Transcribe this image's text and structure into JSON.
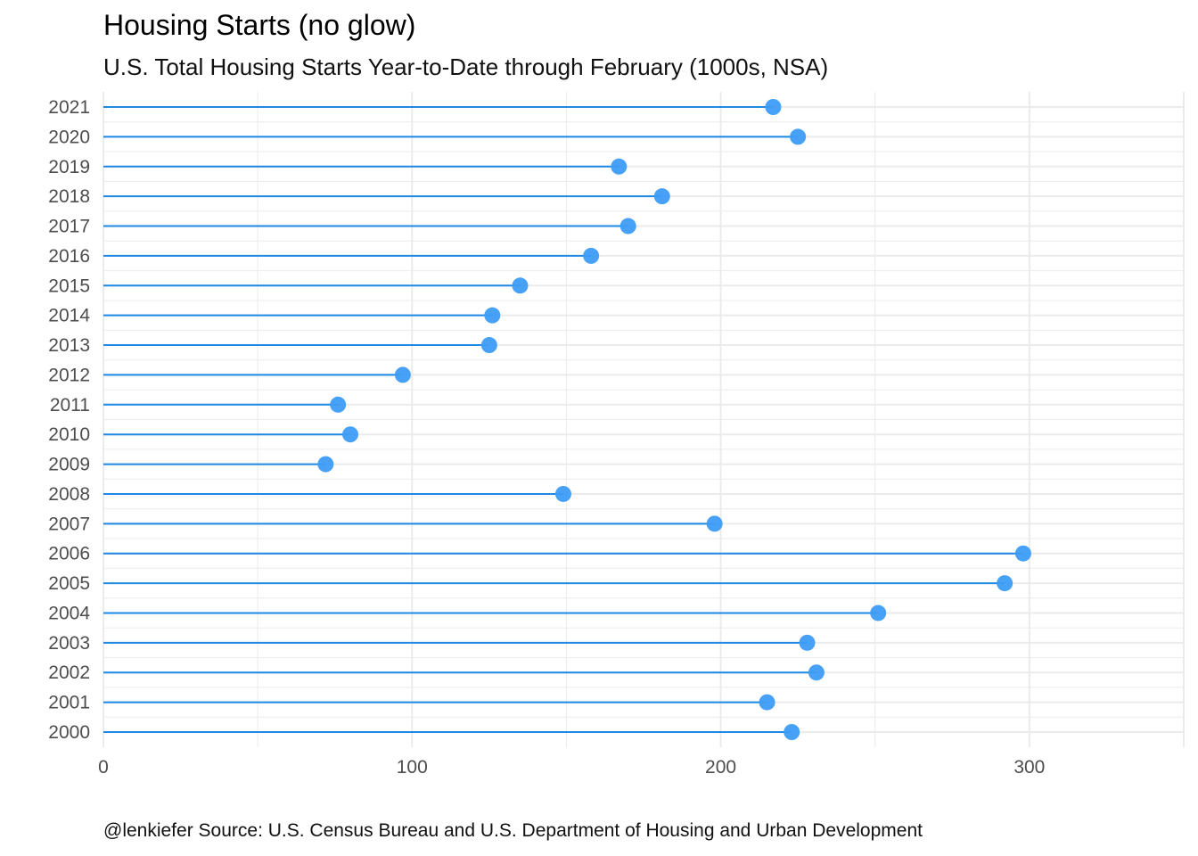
{
  "chart_data": {
    "type": "lollipop",
    "title": "Housing Starts (no glow)",
    "subtitle": "U.S. Total Housing Starts Year-to-Date through February (1000s, NSA)",
    "caption": "@lenkiefer Source: U.S. Census Bureau and U.S. Department of Housing and Urban Development",
    "xlabel": "",
    "ylabel": "",
    "xlim": [
      0,
      350
    ],
    "x_ticks": [
      0,
      100,
      200,
      300
    ],
    "grid": true,
    "colors": {
      "stem": "#1e88e5",
      "point": "#3d9cf5",
      "grid": "#ebebeb",
      "tick_text": "#4d4d4d"
    },
    "categories": [
      "2021",
      "2020",
      "2019",
      "2018",
      "2017",
      "2016",
      "2015",
      "2014",
      "2013",
      "2012",
      "2011",
      "2010",
      "2009",
      "2008",
      "2007",
      "2006",
      "2005",
      "2004",
      "2003",
      "2002",
      "2001",
      "2000"
    ],
    "values": [
      217,
      225,
      167,
      181,
      170,
      158,
      135,
      126,
      125,
      97,
      76,
      80,
      72,
      149,
      198,
      298,
      292,
      251,
      228,
      231,
      215,
      223
    ]
  }
}
